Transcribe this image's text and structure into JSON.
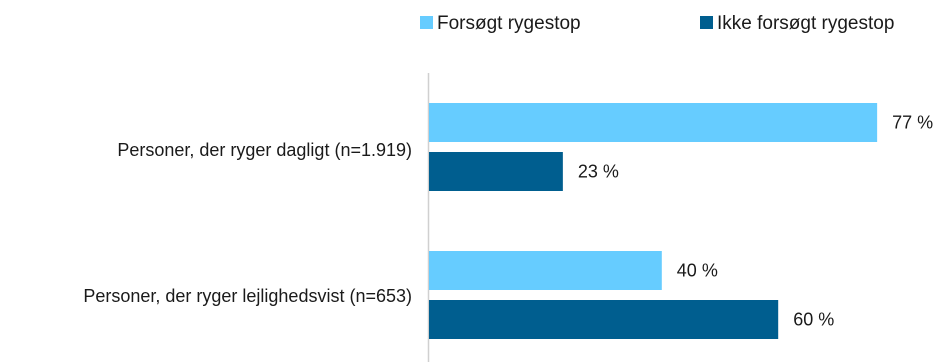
{
  "chart_data": {
    "type": "bar",
    "orientation": "horizontal",
    "categories": [
      "Personer, der ryger dagligt (n=1.919)",
      "Personer, der ryger lejlighedsvist (n=653)"
    ],
    "series": [
      {
        "name": "Forsøgt rygestop",
        "values": [
          77,
          40
        ],
        "labels": [
          "77 %",
          "40 %"
        ],
        "color": "#66ccff"
      },
      {
        "name": "Ikke forsøgt rygestop",
        "values": [
          23,
          60
        ],
        "labels": [
          "23 %",
          "60 %"
        ],
        "color": "#005e8f"
      }
    ],
    "xlim": [
      0,
      100
    ],
    "grid": false,
    "legend_position": "top-right",
    "axis_color": "#d0d0d0"
  }
}
